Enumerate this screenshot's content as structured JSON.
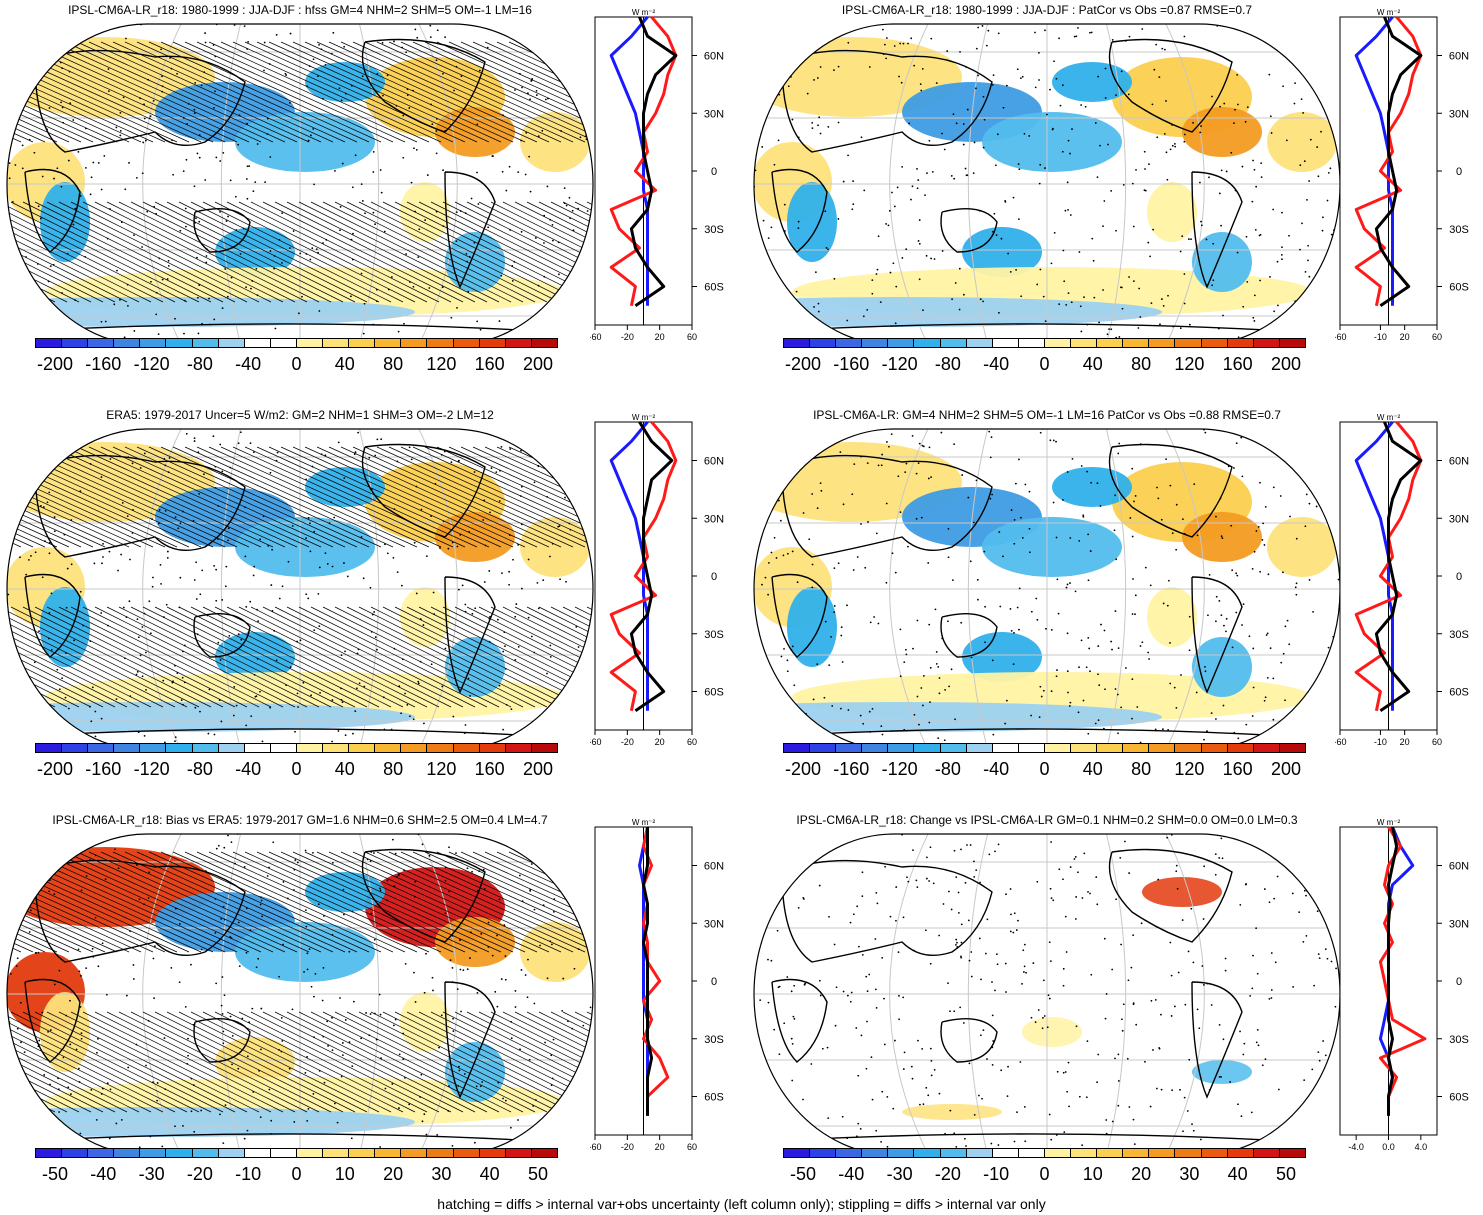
{
  "footer": "hatching = diffs > internal var+obs uncertainty (left column only); stippling = diffs > internal var only",
  "colors": {
    "palette": [
      "#2c1ae0",
      "#2d41e6",
      "#3b67e4",
      "#3f84e0",
      "#3f9ce4",
      "#2fb0ea",
      "#52bded",
      "#9dd1ef",
      "#ffffff",
      "#ffffff",
      "#fff3a3",
      "#fde27a",
      "#fbcf4f",
      "#f7b733",
      "#f39b22",
      "#ee7c16",
      "#ea5b10",
      "#e33a0e",
      "#d41515",
      "#b80a0a"
    ],
    "land": "#000000",
    "grid": "#c8c8c8",
    "blue_line": "#1a1aff",
    "red_line": "#ff1a1a",
    "black_line": "#000000"
  },
  "panels": [
    {
      "title": "IPSL-CM6A-LR_r18: 1980-1999 : JJA-DJF : hfss GM=4 NHM=2 SHM=5 OM=-1 LM=16",
      "colorbar_labels": [
        "-200",
        "-160",
        "-120",
        "-80",
        "-40",
        "0",
        "40",
        "80",
        "120",
        "160",
        "200"
      ],
      "zonal_xticks": [
        "-60",
        "-20",
        "20",
        "60"
      ],
      "unit": "W m⁻²",
      "lat_labels": [
        "60N",
        "30N",
        "0",
        "30S",
        "60S"
      ]
    },
    {
      "title": "IPSL-CM6A-LR_r18: 1980-1999 : JJA-DJF : PatCor vs Obs =0.87 RMSE=0.7",
      "colorbar_labels": [
        "-200",
        "-160",
        "-120",
        "-80",
        "-40",
        "0",
        "40",
        "80",
        "120",
        "160",
        "200"
      ],
      "zonal_xticks": [
        "-60",
        "-10",
        "20",
        "60"
      ],
      "unit": "W m⁻²",
      "lat_labels": [
        "60N",
        "30N",
        "0",
        "30S",
        "60S"
      ]
    },
    {
      "title": "ERA5: 1979-2017 Uncer=5 W/m2: GM=2 NHM=1 SHM=3 OM=-2 LM=12",
      "colorbar_labels": [
        "-200",
        "-160",
        "-120",
        "-80",
        "-40",
        "0",
        "40",
        "80",
        "120",
        "160",
        "200"
      ],
      "zonal_xticks": [
        "-60",
        "-20",
        "20",
        "60"
      ],
      "unit": "W m⁻²",
      "lat_labels": [
        "60N",
        "30N",
        "0",
        "30S",
        "60S"
      ]
    },
    {
      "title": "IPSL-CM6A-LR: GM=4 NHM=2 SHM=5 OM=-1 LM=16 PatCor vs Obs =0.88 RMSE=0.7",
      "colorbar_labels": [
        "-200",
        "-160",
        "-120",
        "-80",
        "-40",
        "0",
        "40",
        "80",
        "120",
        "160",
        "200"
      ],
      "zonal_xticks": [
        "-60",
        "-10",
        "20",
        "60"
      ],
      "unit": "W m⁻²",
      "lat_labels": [
        "60N",
        "30N",
        "0",
        "30S",
        "60S"
      ]
    },
    {
      "title": "IPSL-CM6A-LR_r18: Bias vs ERA5: 1979-2017 GM=1.6 NHM=0.6 SHM=2.5 OM=0.4 LM=4.7",
      "colorbar_labels": [
        "-50",
        "-40",
        "-30",
        "-20",
        "-10",
        "0",
        "10",
        "20",
        "30",
        "40",
        "50"
      ],
      "zonal_xticks": [
        "-60",
        "-20",
        "20",
        "60"
      ],
      "unit": "W m⁻²",
      "lat_labels": [
        "60N",
        "30N",
        "0",
        "30S",
        "60S"
      ]
    },
    {
      "title": "IPSL-CM6A-LR_r18: Change vs IPSL-CM6A-LR GM=0.1 NHM=0.2 SHM=0.0 OM=0.0 LM=0.3",
      "colorbar_labels": [
        "-50",
        "-40",
        "-30",
        "-20",
        "-10",
        "0",
        "10",
        "20",
        "30",
        "40",
        "50"
      ],
      "zonal_xticks": [
        "-4.0",
        "0.0",
        "4.0"
      ],
      "unit": "W m⁻²",
      "lat_labels": [
        "60N",
        "30N",
        "0",
        "30S",
        "60S"
      ]
    }
  ],
  "chart_data": [
    {
      "type": "heatmap",
      "title": "IPSL-CM6A-LR_r18: 1980-1999 : JJA-DJF : hfss GM=4 NHM=2 SHM=5 OM=-1 LM=16",
      "variable": "hfss JJA-DJF",
      "unit": "W m-2",
      "colorbar_range": [
        -200,
        200
      ],
      "zonal_profile": {
        "lat": [
          80,
          70,
          60,
          50,
          40,
          30,
          20,
          10,
          0,
          -10,
          -20,
          -30,
          -40,
          -50,
          -60,
          -70
        ],
        "model": [
          -5,
          5,
          40,
          15,
          5,
          0,
          0,
          0,
          5,
          10,
          5,
          -15,
          -10,
          5,
          25,
          -10
        ],
        "obs_blue": [
          5,
          -15,
          -40,
          -30,
          -20,
          -10,
          -5,
          0,
          0,
          0,
          5,
          5,
          5,
          5,
          5,
          5
        ],
        "obs_red": [
          10,
          30,
          40,
          30,
          25,
          15,
          0,
          5,
          -10,
          15,
          -40,
          -30,
          -5,
          -40,
          -10,
          -15
        ]
      }
    },
    {
      "type": "heatmap",
      "title": "IPSL-CM6A-LR_r18: 1980-1999 : JJA-DJF : PatCor vs Obs =0.87 RMSE=0.7",
      "variable": "hfss JJA-DJF",
      "unit": "W m-2",
      "colorbar_range": [
        -200,
        200
      ],
      "zonal_profile": {
        "lat": [
          80,
          70,
          60,
          50,
          40,
          30,
          20,
          10,
          0,
          -10,
          -20,
          -30,
          -40,
          -50,
          -60,
          -70
        ],
        "model": [
          -5,
          5,
          40,
          15,
          5,
          0,
          0,
          0,
          5,
          10,
          5,
          -15,
          -10,
          5,
          25,
          -10
        ],
        "obs_blue": [
          5,
          -15,
          -40,
          -30,
          -20,
          -10,
          -5,
          0,
          0,
          0,
          5,
          5,
          5,
          5,
          5,
          5
        ],
        "obs_red": [
          10,
          30,
          40,
          30,
          25,
          15,
          0,
          5,
          -10,
          15,
          -40,
          -30,
          -5,
          -40,
          -10,
          -15
        ]
      }
    },
    {
      "type": "heatmap",
      "title": "ERA5: 1979-2017 Uncer=5 W/m2: GM=2 NHM=1 SHM=3 OM=-2 LM=12",
      "variable": "hfss JJA-DJF",
      "unit": "W m-2",
      "colorbar_range": [
        -200,
        200
      ],
      "zonal_profile": {
        "lat": [
          80,
          70,
          60,
          50,
          40,
          30,
          20,
          10,
          0,
          -10,
          -20,
          -30,
          -40,
          -50,
          -60,
          -70
        ],
        "model": [
          -5,
          10,
          35,
          10,
          5,
          0,
          0,
          0,
          5,
          10,
          5,
          -15,
          -10,
          5,
          25,
          -10
        ],
        "obs_blue": [
          5,
          -15,
          -40,
          -30,
          -20,
          -10,
          -5,
          0,
          0,
          0,
          5,
          5,
          5,
          5,
          5,
          5
        ],
        "obs_red": [
          10,
          30,
          40,
          30,
          25,
          15,
          0,
          5,
          -10,
          15,
          -40,
          -30,
          -5,
          -40,
          -10,
          -15
        ]
      }
    },
    {
      "type": "heatmap",
      "title": "IPSL-CM6A-LR: GM=4 NHM=2 SHM=5 OM=-1 LM=16 PatCor vs Obs =0.88 RMSE=0.7",
      "variable": "hfss JJA-DJF",
      "unit": "W m-2",
      "colorbar_range": [
        -200,
        200
      ],
      "zonal_profile": {
        "lat": [
          80,
          70,
          60,
          50,
          40,
          30,
          20,
          10,
          0,
          -10,
          -20,
          -30,
          -40,
          -50,
          -60,
          -70
        ],
        "model": [
          -5,
          5,
          40,
          15,
          5,
          0,
          0,
          0,
          5,
          10,
          5,
          -15,
          -10,
          5,
          25,
          -10
        ],
        "obs_blue": [
          5,
          -15,
          -40,
          -30,
          -20,
          -10,
          -5,
          0,
          0,
          0,
          5,
          5,
          5,
          5,
          5,
          5
        ],
        "obs_red": [
          10,
          30,
          40,
          30,
          25,
          15,
          0,
          5,
          -10,
          15,
          -40,
          -30,
          -5,
          -40,
          -10,
          -15
        ]
      }
    },
    {
      "type": "heatmap",
      "title": "IPSL-CM6A-LR_r18: Bias vs ERA5: 1979-2017 GM=1.6 NHM=0.6 SHM=2.5 OM=0.4 LM=4.7",
      "variable": "hfss bias",
      "unit": "W m-2",
      "colorbar_range": [
        -50,
        50
      ],
      "zonal_profile": {
        "lat": [
          80,
          70,
          60,
          50,
          40,
          30,
          20,
          10,
          0,
          -10,
          -20,
          -30,
          -40,
          -50,
          -60,
          -70
        ],
        "model": [
          5,
          5,
          5,
          0,
          5,
          5,
          0,
          5,
          5,
          5,
          5,
          5,
          10,
          5,
          5,
          5
        ],
        "obs_blue": [
          5,
          0,
          -5,
          0,
          0,
          0,
          0,
          0,
          0,
          0,
          5,
          5,
          5,
          5,
          5,
          5
        ],
        "obs_red": [
          5,
          0,
          10,
          0,
          5,
          0,
          5,
          5,
          20,
          0,
          10,
          0,
          20,
          30,
          5,
          5
        ]
      }
    },
    {
      "type": "heatmap",
      "title": "IPSL-CM6A-LR_r18: Change vs IPSL-CM6A-LR GM=0.1 NHM=0.2 SHM=0.0 OM=0.0 LM=0.3",
      "variable": "hfss change",
      "unit": "W m-2",
      "colorbar_range": [
        -50,
        50
      ],
      "zonal_profile": {
        "lat": [
          80,
          70,
          60,
          50,
          40,
          30,
          20,
          10,
          0,
          -10,
          -20,
          -30,
          -40,
          -50,
          -60,
          -70
        ],
        "model": [
          0.5,
          1.0,
          0.5,
          0.0,
          0.2,
          0.0,
          0.0,
          0.0,
          0.0,
          0.0,
          0.0,
          0.5,
          0.0,
          0.5,
          0.0,
          0.0
        ],
        "obs_blue": [
          0.5,
          1.5,
          3.0,
          0.5,
          0.0,
          0.0,
          0.0,
          0.0,
          0.0,
          0.0,
          -0.5,
          -1.0,
          0.0,
          0.5,
          0.0,
          0.0
        ],
        "obs_red": [
          0.0,
          1.5,
          0.0,
          -0.5,
          0.5,
          -0.5,
          0.5,
          -1.0,
          -0.5,
          0.0,
          0.5,
          4.5,
          -1.0,
          1.0,
          0.0,
          0.0
        ]
      }
    }
  ]
}
